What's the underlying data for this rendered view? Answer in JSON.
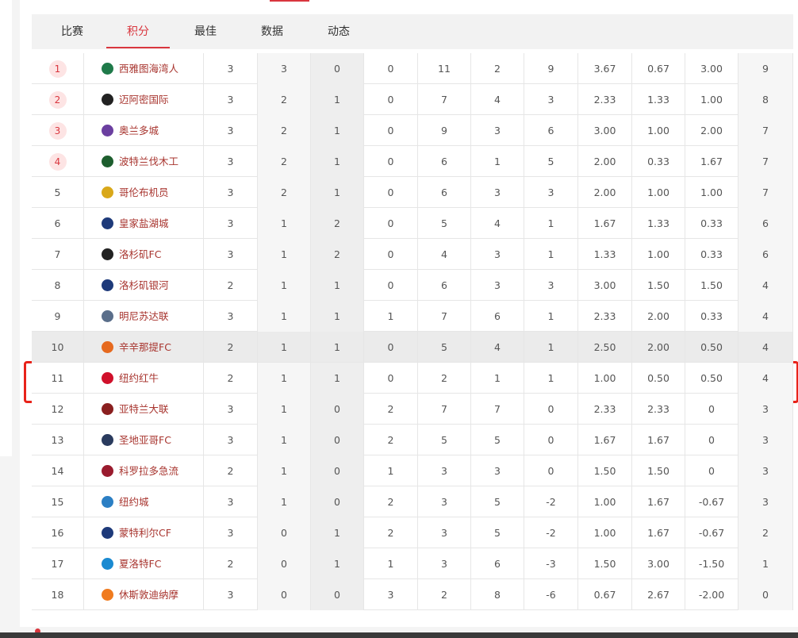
{
  "tabs": [
    "比赛",
    "积分",
    "最佳",
    "数据",
    "动态"
  ],
  "table": {
    "rows": [
      [
        "1",
        "西雅图海湾人",
        "3",
        "3",
        "0",
        "0",
        "11",
        "2",
        "9",
        "3.67",
        "0.67",
        "3.00",
        "9"
      ],
      [
        "2",
        "迈阿密国际",
        "3",
        "2",
        "1",
        "0",
        "7",
        "4",
        "3",
        "2.33",
        "1.33",
        "1.00",
        "8"
      ],
      [
        "3",
        "奥兰多城",
        "3",
        "2",
        "1",
        "0",
        "9",
        "3",
        "6",
        "3.00",
        "1.00",
        "2.00",
        "7"
      ],
      [
        "4",
        "波特兰伐木工",
        "3",
        "2",
        "1",
        "0",
        "6",
        "1",
        "5",
        "2.00",
        "0.33",
        "1.67",
        "7"
      ],
      [
        "5",
        "哥伦布机员",
        "3",
        "2",
        "1",
        "0",
        "6",
        "3",
        "3",
        "2.00",
        "1.00",
        "1.00",
        "7"
      ],
      [
        "6",
        "皇家盐湖城",
        "3",
        "1",
        "2",
        "0",
        "5",
        "4",
        "1",
        "1.67",
        "1.33",
        "0.33",
        "6"
      ],
      [
        "7",
        "洛杉矶FC",
        "3",
        "1",
        "2",
        "0",
        "4",
        "3",
        "1",
        "1.33",
        "1.00",
        "0.33",
        "6"
      ],
      [
        "8",
        "洛杉矶银河",
        "2",
        "1",
        "1",
        "0",
        "6",
        "3",
        "3",
        "3.00",
        "1.50",
        "1.50",
        "4"
      ],
      [
        "9",
        "明尼苏达联",
        "3",
        "1",
        "1",
        "1",
        "7",
        "6",
        "1",
        "2.33",
        "2.00",
        "0.33",
        "4"
      ],
      [
        "10",
        "辛辛那提FC",
        "2",
        "1",
        "1",
        "0",
        "5",
        "4",
        "1",
        "2.50",
        "2.00",
        "0.50",
        "4"
      ],
      [
        "11",
        "纽约红牛",
        "2",
        "1",
        "1",
        "0",
        "2",
        "1",
        "1",
        "1.00",
        "0.50",
        "0.50",
        "4"
      ],
      [
        "12",
        "亚特兰大联",
        "3",
        "1",
        "0",
        "2",
        "7",
        "7",
        "0",
        "2.33",
        "2.33",
        "0",
        "3"
      ],
      [
        "13",
        "圣地亚哥FC",
        "3",
        "1",
        "0",
        "2",
        "5",
        "5",
        "0",
        "1.67",
        "1.67",
        "0",
        "3"
      ],
      [
        "14",
        "科罗拉多急流",
        "2",
        "1",
        "0",
        "1",
        "3",
        "3",
        "0",
        "1.50",
        "1.50",
        "0",
        "3"
      ],
      [
        "15",
        "纽约城",
        "3",
        "1",
        "0",
        "2",
        "3",
        "5",
        "-2",
        "1.00",
        "1.67",
        "-0.67",
        "3"
      ],
      [
        "16",
        "蒙特利尔CF",
        "3",
        "0",
        "1",
        "2",
        "3",
        "5",
        "-2",
        "1.00",
        "1.67",
        "-0.67",
        "2"
      ],
      [
        "17",
        "夏洛特FC",
        "2",
        "0",
        "1",
        "1",
        "3",
        "6",
        "-3",
        "1.50",
        "3.00",
        "-1.50",
        "1"
      ],
      [
        "18",
        "休斯敦迪纳摩",
        "3",
        "0",
        "0",
        "3",
        "2",
        "8",
        "-6",
        "0.67",
        "2.67",
        "-2.00",
        "0"
      ]
    ]
  }
}
